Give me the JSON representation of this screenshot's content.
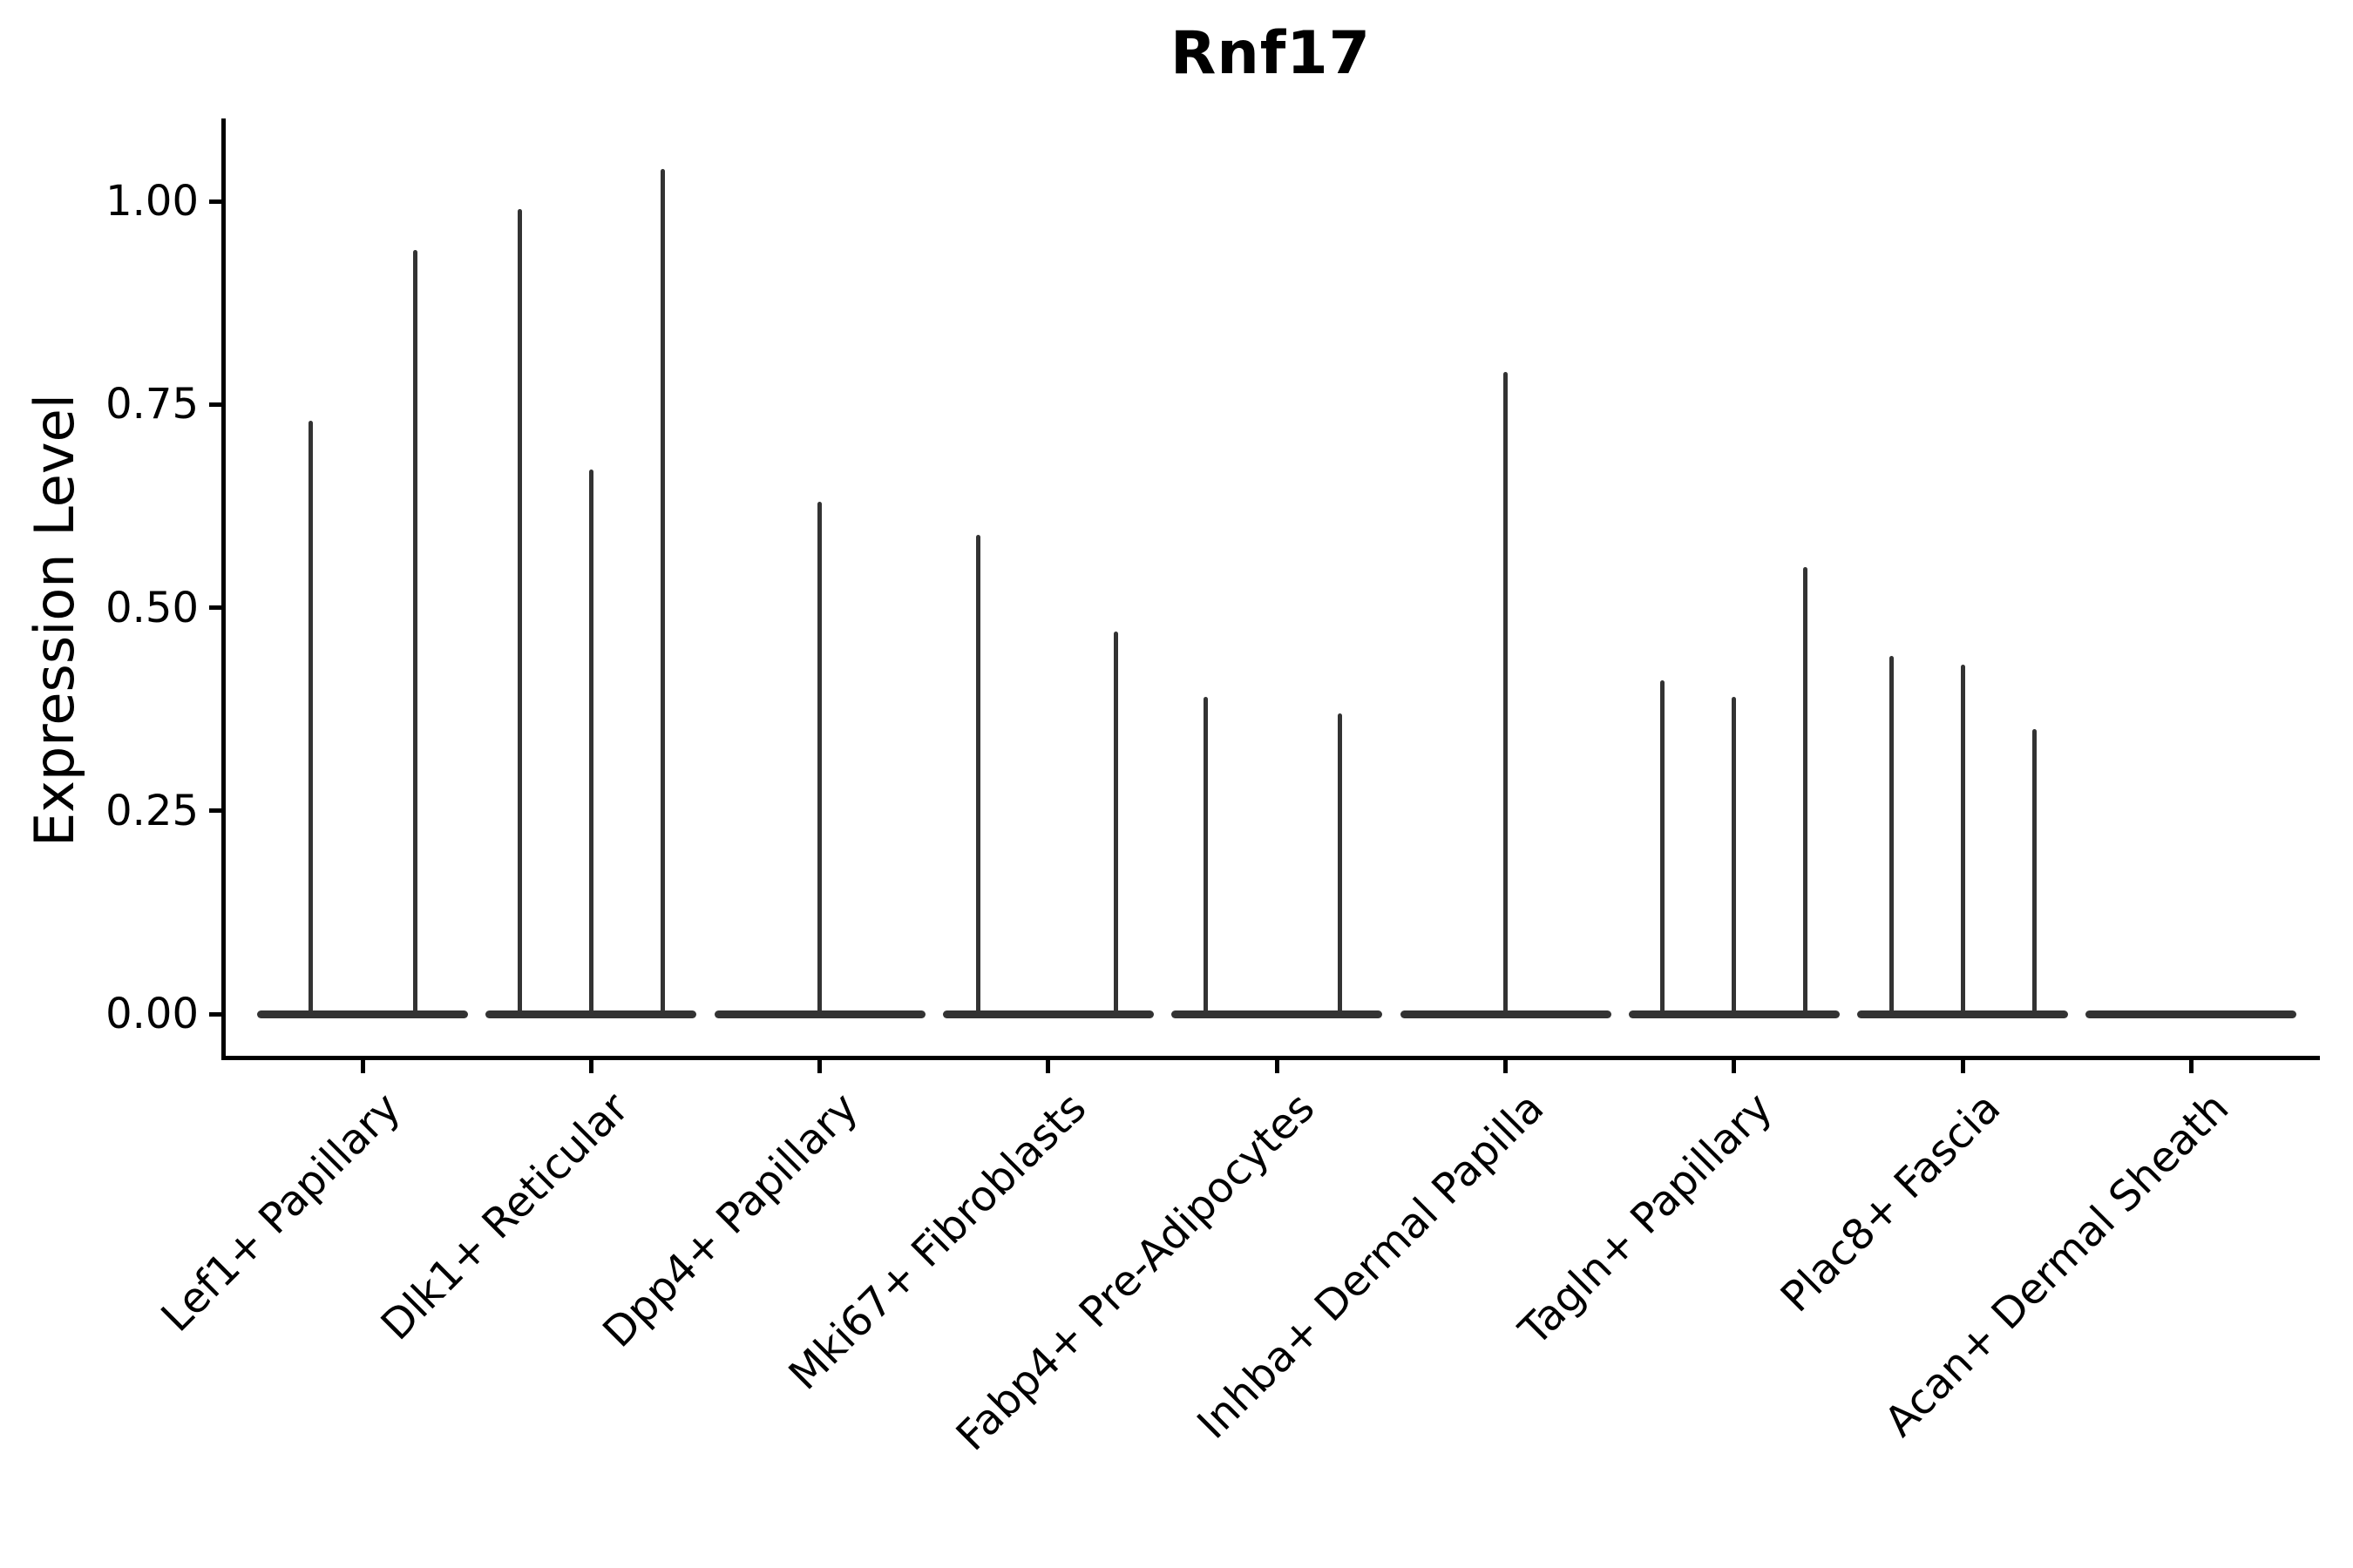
{
  "title": "Rnf17",
  "y_axis": {
    "label": "Expression Level",
    "tick_labels": [
      "1.00",
      "0.75",
      "0.50",
      "0.25",
      "0.00"
    ]
  },
  "chart_data": {
    "type": "violin",
    "title": "Rnf17",
    "xlabel": "",
    "ylabel": "Expression Level",
    "ylim": [
      -0.03,
      1.1
    ],
    "yticks": [
      0.0,
      0.25,
      0.5,
      0.75,
      1.0
    ],
    "ytick_labels": [
      "0.00",
      "0.25",
      "0.50",
      "0.75",
      "1.00"
    ],
    "grid": false,
    "legend": "none",
    "note": "Stacked-violin style gene expression plot; each category shows flattened violin bases at 0 with thin spikes rising to the maximum expression of each sub-violin.",
    "categories": [
      {
        "label": "Lef1+ Papillary",
        "spikes": [
          {
            "offset": -60,
            "max": 0.73
          },
          {
            "offset": 60,
            "max": 0.94
          }
        ]
      },
      {
        "label": "Dlk1+ Reticular",
        "spikes": [
          {
            "offset": -82,
            "max": 0.99
          },
          {
            "offset": 0,
            "max": 0.67
          },
          {
            "offset": 82,
            "max": 1.04
          }
        ]
      },
      {
        "label": "Dpp4+ Papillary",
        "spikes": [
          {
            "offset": 0,
            "max": 0.63
          }
        ]
      },
      {
        "label": "Mki67+ Fibroblasts",
        "spikes": [
          {
            "offset": -80,
            "max": 0.59
          },
          {
            "offset": 78,
            "max": 0.47
          }
        ]
      },
      {
        "label": "Fabp4+ Pre-Adipocytes",
        "spikes": [
          {
            "offset": -82,
            "max": 0.39
          },
          {
            "offset": 72,
            "max": 0.37
          }
        ]
      },
      {
        "label": "Inhba+ Dermal Papilla",
        "spikes": [
          {
            "offset": 0,
            "max": 0.79
          }
        ]
      },
      {
        "label": "Tagln+ Papillary",
        "spikes": [
          {
            "offset": -82,
            "max": 0.41
          },
          {
            "offset": 0,
            "max": 0.39
          },
          {
            "offset": 82,
            "max": 0.55
          }
        ]
      },
      {
        "label": "Plac8+ Fascia",
        "spikes": [
          {
            "offset": -82,
            "max": 0.44
          },
          {
            "offset": 0,
            "max": 0.43
          },
          {
            "offset": 82,
            "max": 0.35
          }
        ]
      },
      {
        "label": "Acan+ Dermal Sheath",
        "spikes": []
      }
    ],
    "colors": {
      "violin": "#333333",
      "axis": "#000000",
      "text": "#000000",
      "background": "#ffffff"
    }
  }
}
